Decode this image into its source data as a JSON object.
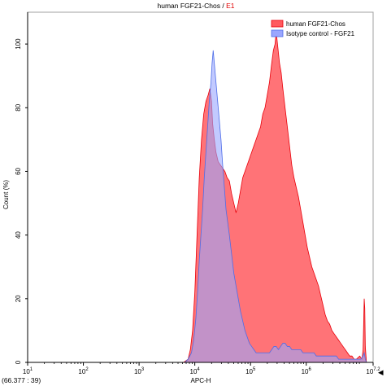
{
  "chart_data": {
    "type": "area",
    "title_main": "human FGF21-Chos",
    "title_sep": " / ",
    "title_gate": "E1",
    "title_gate_color": "#e00000",
    "xlabel": "APC-H",
    "ylabel": "Count (%)",
    "xscale": "log",
    "xlim_log10": [
      1,
      7.2
    ],
    "ylim": [
      0,
      110
    ],
    "x_ticks": [
      {
        "base": "10",
        "exp": "1",
        "log": 1
      },
      {
        "base": "10",
        "exp": "2",
        "log": 2
      },
      {
        "base": "10",
        "exp": "3",
        "log": 3
      },
      {
        "base": "10",
        "exp": "4",
        "log": 4
      },
      {
        "base": "10",
        "exp": "5",
        "log": 5
      },
      {
        "base": "10",
        "exp": "6",
        "log": 6
      },
      {
        "base": "10",
        "exp": "7.2",
        "log": 7.2
      }
    ],
    "y_ticks": [
      0,
      20,
      40,
      60,
      80,
      100
    ],
    "y_tick_labels": [
      "0",
      "20",
      "40",
      "60",
      "80",
      "100"
    ],
    "legend_position": "top-right",
    "grid": false,
    "series": [
      {
        "name": "human FGF21-Chos",
        "color": "#ff5a5f",
        "stroke": "#e8000a",
        "points": [
          [
            3.8,
            0
          ],
          [
            3.88,
            1
          ],
          [
            3.92,
            4
          ],
          [
            3.96,
            10
          ],
          [
            4.0,
            22
          ],
          [
            4.04,
            40
          ],
          [
            4.08,
            58
          ],
          [
            4.12,
            70
          ],
          [
            4.16,
            78
          ],
          [
            4.2,
            82
          ],
          [
            4.24,
            84
          ],
          [
            4.27,
            86
          ],
          [
            4.3,
            82
          ],
          [
            4.32,
            75
          ],
          [
            4.35,
            70
          ],
          [
            4.38,
            66
          ],
          [
            4.42,
            63
          ],
          [
            4.46,
            62
          ],
          [
            4.5,
            61
          ],
          [
            4.54,
            60
          ],
          [
            4.58,
            58
          ],
          [
            4.62,
            57
          ],
          [
            4.66,
            53
          ],
          [
            4.7,
            50
          ],
          [
            4.74,
            47
          ],
          [
            4.78,
            50
          ],
          [
            4.82,
            54
          ],
          [
            4.86,
            58
          ],
          [
            4.9,
            60
          ],
          [
            4.94,
            62
          ],
          [
            4.98,
            64
          ],
          [
            5.02,
            66
          ],
          [
            5.06,
            68
          ],
          [
            5.1,
            70
          ],
          [
            5.14,
            72
          ],
          [
            5.18,
            74
          ],
          [
            5.22,
            78
          ],
          [
            5.26,
            80
          ],
          [
            5.3,
            84
          ],
          [
            5.34,
            88
          ],
          [
            5.38,
            94
          ],
          [
            5.41,
            98
          ],
          [
            5.44,
            100
          ],
          [
            5.46,
            104
          ],
          [
            5.49,
            99
          ],
          [
            5.52,
            94
          ],
          [
            5.55,
            91
          ],
          [
            5.58,
            86
          ],
          [
            5.62,
            80
          ],
          [
            5.66,
            74
          ],
          [
            5.7,
            68
          ],
          [
            5.74,
            62
          ],
          [
            5.78,
            58
          ],
          [
            5.82,
            55
          ],
          [
            5.86,
            52
          ],
          [
            5.9,
            48
          ],
          [
            5.94,
            44
          ],
          [
            5.98,
            40
          ],
          [
            6.02,
            36
          ],
          [
            6.06,
            33
          ],
          [
            6.1,
            30
          ],
          [
            6.14,
            28
          ],
          [
            6.18,
            26
          ],
          [
            6.22,
            24
          ],
          [
            6.26,
            21
          ],
          [
            6.3,
            18
          ],
          [
            6.34,
            15
          ],
          [
            6.38,
            13
          ],
          [
            6.42,
            12
          ],
          [
            6.46,
            10
          ],
          [
            6.5,
            9
          ],
          [
            6.54,
            8
          ],
          [
            6.58,
            7
          ],
          [
            6.62,
            6
          ],
          [
            6.66,
            5
          ],
          [
            6.7,
            4
          ],
          [
            6.74,
            3
          ],
          [
            6.78,
            2
          ],
          [
            6.82,
            2
          ],
          [
            6.86,
            1
          ],
          [
            6.9,
            1
          ],
          [
            6.96,
            2
          ],
          [
            7.0,
            1
          ],
          [
            7.02,
            4
          ],
          [
            7.03,
            12
          ],
          [
            7.04,
            20
          ],
          [
            7.05,
            17
          ],
          [
            7.06,
            5
          ],
          [
            7.08,
            0
          ]
        ]
      },
      {
        "name": "Isotype control - FGF21",
        "color": "#9aa6ff",
        "stroke": "#4d6de8",
        "points": [
          [
            3.82,
            0
          ],
          [
            3.88,
            1
          ],
          [
            3.94,
            3
          ],
          [
            3.98,
            7
          ],
          [
            4.02,
            14
          ],
          [
            4.05,
            22
          ],
          [
            4.08,
            32
          ],
          [
            4.11,
            40
          ],
          [
            4.14,
            48
          ],
          [
            4.17,
            58
          ],
          [
            4.2,
            66
          ],
          [
            4.23,
            74
          ],
          [
            4.26,
            82
          ],
          [
            4.29,
            88
          ],
          [
            4.31,
            94
          ],
          [
            4.33,
            98
          ],
          [
            4.35,
            94
          ],
          [
            4.38,
            88
          ],
          [
            4.41,
            82
          ],
          [
            4.44,
            76
          ],
          [
            4.47,
            70
          ],
          [
            4.5,
            62
          ],
          [
            4.53,
            55
          ],
          [
            4.56,
            48
          ],
          [
            4.59,
            44
          ],
          [
            4.62,
            40
          ],
          [
            4.66,
            34
          ],
          [
            4.7,
            28
          ],
          [
            4.74,
            24
          ],
          [
            4.78,
            20
          ],
          [
            4.82,
            16
          ],
          [
            4.86,
            13
          ],
          [
            4.9,
            10
          ],
          [
            4.94,
            8
          ],
          [
            4.98,
            6
          ],
          [
            5.02,
            5
          ],
          [
            5.06,
            4
          ],
          [
            5.1,
            3
          ],
          [
            5.14,
            3
          ],
          [
            5.18,
            3
          ],
          [
            5.22,
            3
          ],
          [
            5.26,
            3
          ],
          [
            5.3,
            3
          ],
          [
            5.34,
            3
          ],
          [
            5.38,
            4
          ],
          [
            5.42,
            5
          ],
          [
            5.46,
            5
          ],
          [
            5.5,
            4
          ],
          [
            5.54,
            5
          ],
          [
            5.58,
            6
          ],
          [
            5.62,
            6
          ],
          [
            5.66,
            5
          ],
          [
            5.7,
            5
          ],
          [
            5.74,
            4
          ],
          [
            5.78,
            4
          ],
          [
            5.82,
            4
          ],
          [
            5.86,
            4
          ],
          [
            5.9,
            4
          ],
          [
            5.94,
            3
          ],
          [
            5.98,
            3
          ],
          [
            6.02,
            3
          ],
          [
            6.06,
            3
          ],
          [
            6.1,
            3
          ],
          [
            6.14,
            3
          ],
          [
            6.18,
            2
          ],
          [
            6.22,
            2
          ],
          [
            6.26,
            2
          ],
          [
            6.3,
            2
          ],
          [
            6.34,
            2
          ],
          [
            6.38,
            2
          ],
          [
            6.42,
            2
          ],
          [
            6.46,
            2
          ],
          [
            6.5,
            2
          ],
          [
            6.54,
            2
          ],
          [
            6.58,
            1
          ],
          [
            6.62,
            1
          ],
          [
            6.66,
            1
          ],
          [
            6.7,
            1
          ],
          [
            6.74,
            1
          ],
          [
            6.78,
            1
          ],
          [
            6.82,
            1
          ],
          [
            6.86,
            1
          ],
          [
            6.9,
            1
          ],
          [
            6.94,
            1
          ],
          [
            6.98,
            1
          ],
          [
            7.02,
            2
          ],
          [
            7.04,
            3
          ],
          [
            7.06,
            1
          ],
          [
            7.08,
            0
          ]
        ]
      }
    ]
  },
  "status": {
    "coordinates": "(66.377 : 39)",
    "end_arrow": "◀"
  }
}
